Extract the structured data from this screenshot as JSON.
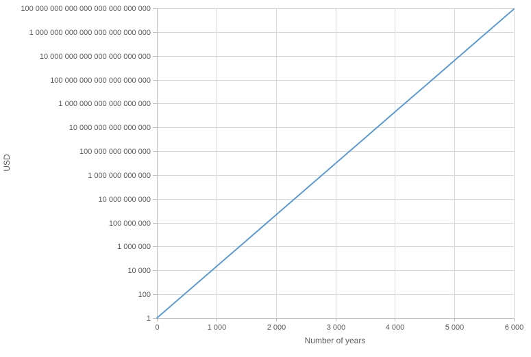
{
  "chart_data": {
    "type": "line",
    "title": "",
    "xlabel": "Number of years",
    "ylabel": "USD",
    "x": [
      0,
      500,
      1000,
      1500,
      2000,
      2500,
      3000,
      3500,
      4000,
      4500,
      5000,
      5500,
      6000
    ],
    "values": [
      1,
      144.8,
      20960,
      3034000,
      439200000,
      63600000000,
      9206000000000,
      1333000000000000,
      1.929e+17,
      2.793e+19,
      4.043e+21,
      5.853e+23,
      8.473e+25
    ],
    "xlim": [
      0,
      6000
    ],
    "ylim": [
      1,
      1e+26
    ],
    "y_scale": "log10",
    "grid": true,
    "legend_position": "none",
    "x_ticks": [
      {
        "value": 0,
        "label": "0"
      },
      {
        "value": 1000,
        "label": "1 000"
      },
      {
        "value": 2000,
        "label": "2 000"
      },
      {
        "value": 3000,
        "label": "3 000"
      },
      {
        "value": 4000,
        "label": "4 000"
      },
      {
        "value": 5000,
        "label": "5 000"
      },
      {
        "value": 6000,
        "label": "6 000"
      }
    ],
    "y_ticks": [
      {
        "value": 1,
        "label": "1"
      },
      {
        "value": 100,
        "label": "100"
      },
      {
        "value": 10000.0,
        "label": "10 000"
      },
      {
        "value": 1000000.0,
        "label": "1 000 000"
      },
      {
        "value": 100000000.0,
        "label": "100 000 000"
      },
      {
        "value": 10000000000.0,
        "label": "10 000 000 000"
      },
      {
        "value": 1000000000000.0,
        "label": "1 000 000 000 000"
      },
      {
        "value": 100000000000000.0,
        "label": "100 000 000 000 000"
      },
      {
        "value": 1e+16,
        "label": "10 000 000 000 000 000"
      },
      {
        "value": 1e+18,
        "label": "1 000 000 000 000 000 000"
      },
      {
        "value": 1e+20,
        "label": "100 000 000 000 000 000 000"
      },
      {
        "value": 1e+22,
        "label": "10 000 000 000 000 000 000 000"
      },
      {
        "value": 1e+24,
        "label": "1 000 000 000 000 000 000 000 000"
      },
      {
        "value": 1e+26,
        "label": "100 000 000 000 000 000 000 000 000"
      }
    ]
  },
  "colors": {
    "line": "#5B9BD5",
    "gridline": "#D9D9D9",
    "axis": "#BFBFBF",
    "tick_label": "#595959",
    "axis_title": "#595959",
    "background": "#FFFFFF"
  }
}
